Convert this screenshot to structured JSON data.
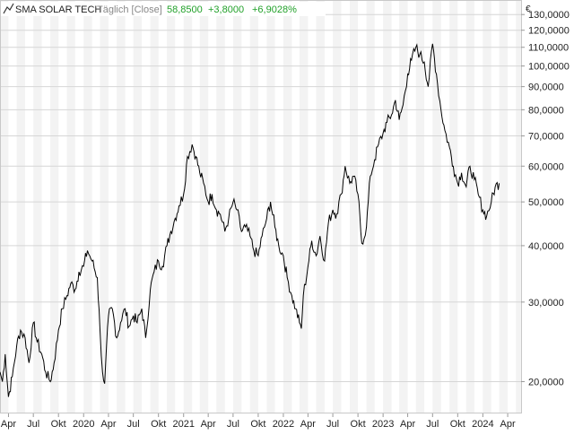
{
  "header": {
    "ticker_icon": "line-chart-icon",
    "title": "SMA SOLAR TECH",
    "subtitle": "Täglich [Close]",
    "price": "58,8500",
    "change_abs": "+3,8000",
    "change_pct": "+6,9028%",
    "positive_color": "#22a12a"
  },
  "chart_data": {
    "type": "line",
    "scale": "log",
    "currency_label": "€",
    "ylim": [
      17000,
      140000
    ],
    "xlim": [
      "2019-03-01",
      "2024-05-20"
    ],
    "yticks": [
      {
        "value": 20000,
        "label": "20,0000"
      },
      {
        "value": 30000,
        "label": "30,0000"
      },
      {
        "value": 40000,
        "label": "40,0000"
      },
      {
        "value": 50000,
        "label": "50,0000"
      },
      {
        "value": 60000,
        "label": "60,0000"
      },
      {
        "value": 70000,
        "label": "70,0000"
      },
      {
        "value": 80000,
        "label": "80,0000"
      },
      {
        "value": 90000,
        "label": "90,0000"
      },
      {
        "value": 100000,
        "label": "100,0000"
      },
      {
        "value": 110000,
        "label": "110,0000"
      },
      {
        "value": 120000,
        "label": "120,0000"
      },
      {
        "value": 130000,
        "label": "130,0000"
      }
    ],
    "xticks": [
      {
        "date": "2019-04-01",
        "label": "Apr"
      },
      {
        "date": "2019-07-01",
        "label": "Jul"
      },
      {
        "date": "2019-10-01",
        "label": "Okt"
      },
      {
        "date": "2020-01-01",
        "label": "2020"
      },
      {
        "date": "2020-04-01",
        "label": "Apr"
      },
      {
        "date": "2020-07-01",
        "label": "Jul"
      },
      {
        "date": "2020-10-01",
        "label": "Okt"
      },
      {
        "date": "2021-01-01",
        "label": "2021"
      },
      {
        "date": "2021-04-01",
        "label": "Apr"
      },
      {
        "date": "2021-07-01",
        "label": "Jul"
      },
      {
        "date": "2021-10-01",
        "label": "Okt"
      },
      {
        "date": "2022-01-01",
        "label": "2022"
      },
      {
        "date": "2022-04-01",
        "label": "Apr"
      },
      {
        "date": "2022-07-01",
        "label": "Jul"
      },
      {
        "date": "2022-10-01",
        "label": "Okt"
      },
      {
        "date": "2023-01-01",
        "label": "2023"
      },
      {
        "date": "2023-04-01",
        "label": "Apr"
      },
      {
        "date": "2023-07-01",
        "label": "Jul"
      },
      {
        "date": "2023-10-01",
        "label": "Okt"
      },
      {
        "date": "2024-01-01",
        "label": "2024"
      },
      {
        "date": "2024-04-01",
        "label": "Apr"
      }
    ],
    "grid": true,
    "line_color": "#000000",
    "series": [
      {
        "x": [
          "2019-03-01",
          "2019-03-10",
          "2019-03-20",
          "2019-04-01",
          "2019-04-15",
          "2019-05-01",
          "2019-05-15",
          "2019-06-01",
          "2019-06-15",
          "2019-07-01",
          "2019-07-15",
          "2019-08-01",
          "2019-08-15",
          "2019-09-01",
          "2019-09-15",
          "2019-10-01",
          "2019-10-15",
          "2019-11-01",
          "2019-11-15",
          "2019-12-01",
          "2019-12-15",
          "2020-01-01",
          "2020-01-15",
          "2020-02-01",
          "2020-02-20",
          "2020-03-01",
          "2020-03-10",
          "2020-03-18",
          "2020-04-01",
          "2020-04-15",
          "2020-05-01",
          "2020-05-15",
          "2020-06-01",
          "2020-06-15",
          "2020-07-01",
          "2020-07-15",
          "2020-08-01",
          "2020-08-15",
          "2020-09-01",
          "2020-09-15",
          "2020-10-01",
          "2020-10-15",
          "2020-11-01",
          "2020-11-15",
          "2020-12-01",
          "2020-12-15",
          "2021-01-01",
          "2021-01-15",
          "2021-02-01",
          "2021-02-15",
          "2021-03-01",
          "2021-03-15",
          "2021-04-01",
          "2021-04-15",
          "2021-05-01",
          "2021-05-15",
          "2021-06-01",
          "2021-06-15",
          "2021-07-01",
          "2021-07-15",
          "2021-08-01",
          "2021-08-15",
          "2021-09-01",
          "2021-09-15",
          "2021-10-01",
          "2021-10-15",
          "2021-11-01",
          "2021-11-15",
          "2021-12-01",
          "2021-12-15",
          "2022-01-01",
          "2022-01-15",
          "2022-02-01",
          "2022-02-15",
          "2022-03-01",
          "2022-03-08",
          "2022-03-15",
          "2022-04-01",
          "2022-04-15",
          "2022-05-01",
          "2022-05-15",
          "2022-06-01",
          "2022-06-15",
          "2022-07-01",
          "2022-07-15",
          "2022-08-01",
          "2022-08-15",
          "2022-09-01",
          "2022-09-15",
          "2022-10-01",
          "2022-10-15",
          "2022-11-01",
          "2022-11-15",
          "2022-12-01",
          "2022-12-15",
          "2023-01-01",
          "2023-01-15",
          "2023-02-01",
          "2023-02-15",
          "2023-03-01",
          "2023-03-15",
          "2023-04-01",
          "2023-04-15",
          "2023-05-01",
          "2023-05-15",
          "2023-06-01",
          "2023-06-15",
          "2023-07-01",
          "2023-07-15",
          "2023-08-01",
          "2023-08-15",
          "2023-09-01",
          "2023-09-15",
          "2023-10-01",
          "2023-10-15",
          "2023-11-01",
          "2023-11-15",
          "2023-12-01",
          "2023-12-15",
          "2024-01-01",
          "2024-01-15",
          "2024-02-01",
          "2024-02-15",
          "2024-03-01"
        ],
        "y": [
          21000,
          20000,
          23000,
          18500,
          20500,
          24000,
          26000,
          25000,
          22000,
          27000,
          24500,
          23000,
          21000,
          20000,
          22000,
          26000,
          29000,
          31000,
          33000,
          32000,
          35000,
          36000,
          39000,
          37000,
          34000,
          26000,
          21000,
          19800,
          28000,
          29000,
          25000,
          27000,
          29000,
          26500,
          28000,
          27000,
          29000,
          25000,
          32000,
          35000,
          37000,
          36000,
          40000,
          43000,
          46000,
          49000,
          52000,
          63000,
          67000,
          63000,
          58000,
          55000,
          50000,
          52000,
          48000,
          47000,
          43000,
          46000,
          50000,
          48000,
          43000,
          44000,
          42000,
          39000,
          38000,
          42000,
          46000,
          50000,
          44000,
          40000,
          38000,
          34000,
          31000,
          29000,
          27000,
          26200,
          31000,
          36000,
          41000,
          38000,
          42000,
          37000,
          45000,
          48000,
          47000,
          52000,
          60000,
          55000,
          57000,
          52000,
          40500,
          44000,
          57000,
          62000,
          67000,
          71000,
          75000,
          78000,
          84000,
          76000,
          82000,
          96000,
          103000,
          110000,
          106000,
          102000,
          90000,
          112000,
          96000,
          80000,
          72000,
          66000,
          60000,
          55000,
          58000,
          54000,
          60000,
          56000,
          52000,
          48000,
          46500,
          50000,
          54000,
          55000
        ]
      }
    ]
  }
}
